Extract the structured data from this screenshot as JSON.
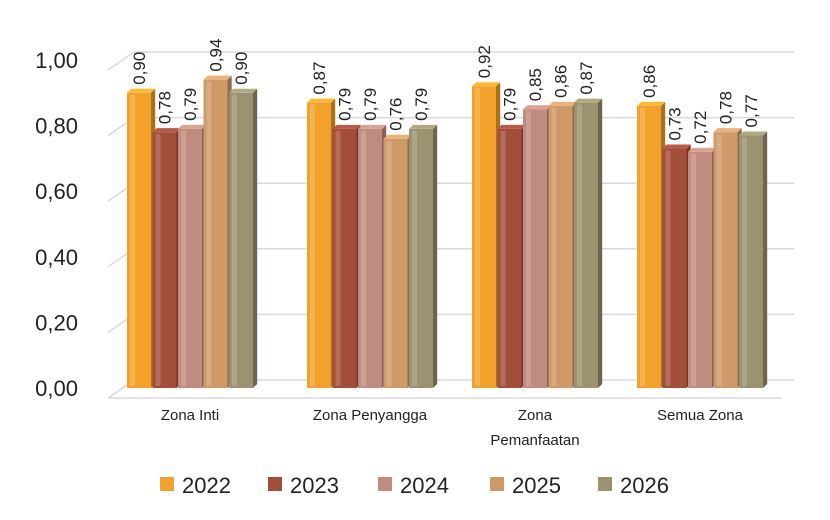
{
  "chart_data": {
    "type": "bar",
    "title": "",
    "xlabel": "",
    "ylabel": "",
    "ylim": [
      0,
      1.0
    ],
    "yticks": [
      "0,00",
      "0,20",
      "0,40",
      "0,60",
      "0,80",
      "1,00"
    ],
    "ytick_values": [
      0,
      0.2,
      0.4,
      0.6,
      0.8,
      1.0
    ],
    "grid": true,
    "legend_position": "bottom",
    "categories": [
      "Zona Inti",
      "Zona Penyangga",
      "Zona\nPemanfaatan",
      "Semua Zona"
    ],
    "series": [
      {
        "name": "2022",
        "color": "#F2A12B",
        "values": [
          0.9,
          0.87,
          0.92,
          0.86
        ],
        "labels": [
          "0,90",
          "0,87",
          "0,92",
          "0,86"
        ]
      },
      {
        "name": "2023",
        "color": "#A24E3A",
        "values": [
          0.78,
          0.79,
          0.79,
          0.73
        ],
        "labels": [
          "0,78",
          "0,79",
          "0,79",
          "0,73"
        ]
      },
      {
        "name": "2024",
        "color": "#C08C80",
        "values": [
          0.79,
          0.79,
          0.85,
          0.72
        ],
        "labels": [
          "0,79",
          "0,79",
          "0,85",
          "0,72"
        ]
      },
      {
        "name": "2025",
        "color": "#CF9A68",
        "values": [
          0.94,
          0.76,
          0.86,
          0.78
        ],
        "labels": [
          "0,94",
          "0,76",
          "0,86",
          "0,78"
        ]
      },
      {
        "name": "2026",
        "color": "#9C9270",
        "values": [
          0.9,
          0.79,
          0.87,
          0.77
        ],
        "labels": [
          "0,90",
          "0,79",
          "0,87",
          "0,77"
        ]
      }
    ]
  }
}
